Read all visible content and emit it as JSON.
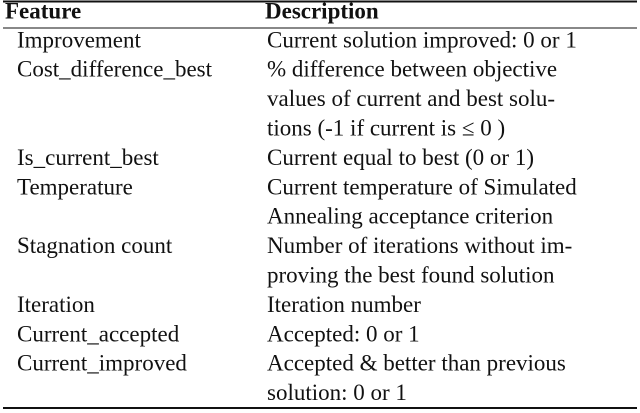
{
  "table": {
    "header": [
      "Feature",
      "Description"
    ],
    "rows": [
      {
        "feature": "Improvement",
        "description": [
          "Current solution improved: 0 or 1"
        ]
      },
      {
        "feature": "Cost_difference_best",
        "description": [
          "% difference between objective",
          "values of current and best solu-",
          "tions (-1 if current is ≤ 0 )"
        ]
      },
      {
        "feature": "Is_current_best",
        "description": [
          "Current equal to best (0 or 1)"
        ]
      },
      {
        "feature": "Temperature",
        "description": [
          "Current temperature of Simulated",
          "Annealing acceptance criterion"
        ]
      },
      {
        "feature": "Stagnation count",
        "description": [
          "Number of iterations without im-",
          "proving the best found solution"
        ]
      },
      {
        "feature": "Iteration",
        "description": [
          "Iteration number"
        ]
      },
      {
        "feature": "Current_accepted",
        "description": [
          "Accepted: 0 or 1"
        ]
      },
      {
        "feature": "Current_improved",
        "description": [
          "Accepted & better than previous",
          "solution: 0 or 1"
        ]
      }
    ]
  }
}
